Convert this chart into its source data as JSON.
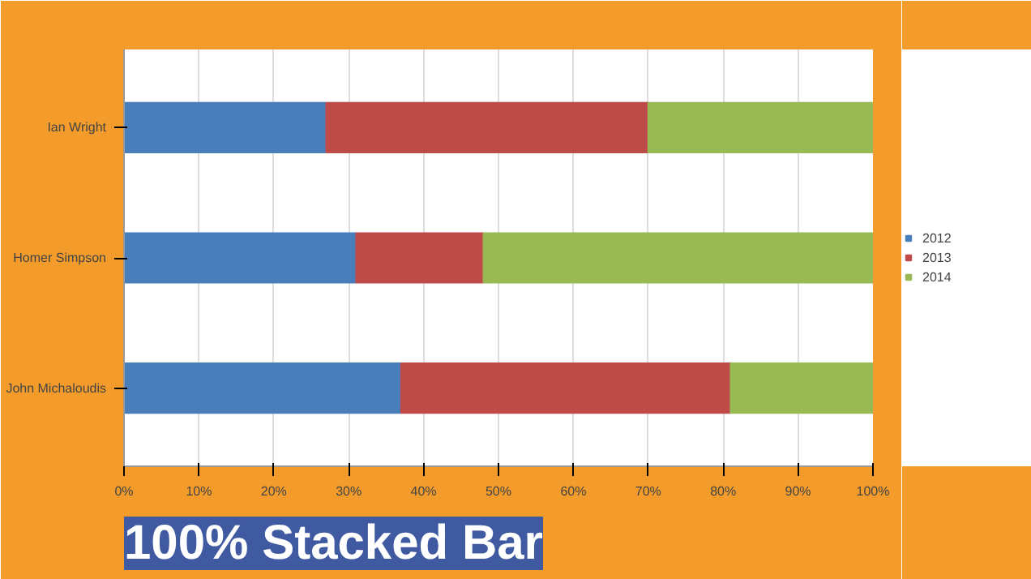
{
  "chart_data": {
    "type": "bar",
    "title": "100% Stacked Bar",
    "orientation": "horizontal",
    "stacked": true,
    "categories": [
      "Ian Wright",
      "Homer Simpson",
      "John Michaloudis"
    ],
    "series": [
      {
        "name": "2012",
        "color": "#4a7ebb",
        "values": [
          27,
          31,
          37
        ]
      },
      {
        "name": "2013",
        "color": "#be4b48",
        "values": [
          43,
          17,
          44
        ]
      },
      {
        "name": "2014",
        "color": "#98b954",
        "values": [
          30,
          52,
          19
        ]
      }
    ],
    "xlim": [
      0,
      100
    ],
    "xticks": [
      {
        "value": 0,
        "label": "0%"
      },
      {
        "value": 10,
        "label": "10%"
      },
      {
        "value": 20,
        "label": "20%"
      },
      {
        "value": 30,
        "label": "30%"
      },
      {
        "value": 40,
        "label": "40%"
      },
      {
        "value": 50,
        "label": "50%"
      },
      {
        "value": 60,
        "label": "60%"
      },
      {
        "value": 70,
        "label": "70%"
      },
      {
        "value": 80,
        "label": "80%"
      },
      {
        "value": 90,
        "label": "90%"
      },
      {
        "value": 100,
        "label": "100%"
      }
    ],
    "grid": "x",
    "legend": "right"
  }
}
